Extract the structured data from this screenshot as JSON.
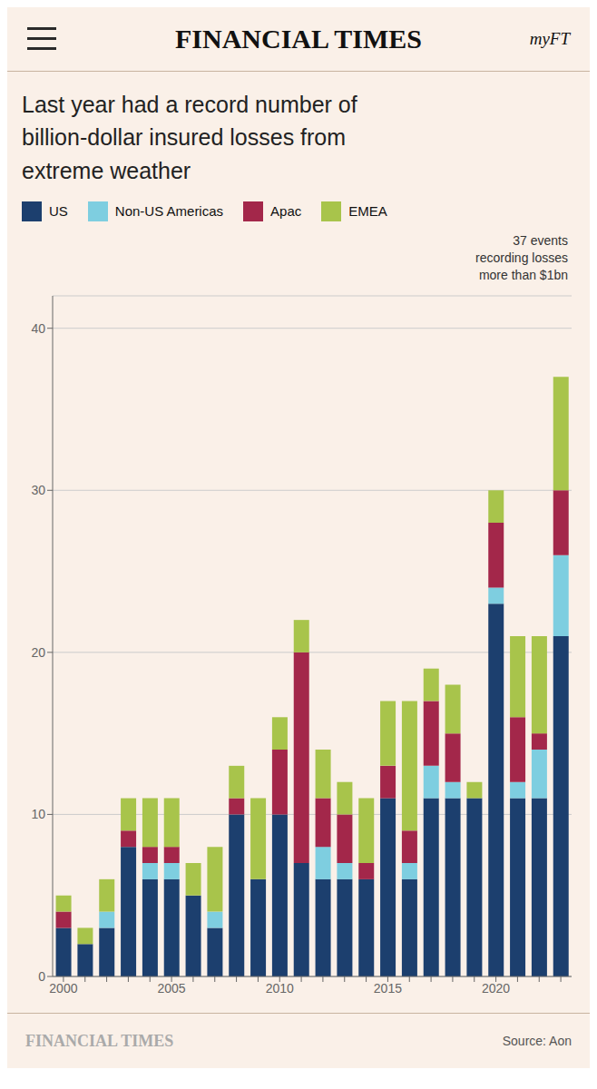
{
  "chart_data": {
    "type": "bar",
    "stacked": true,
    "title": "Last year had a record number of\nbillion-dollar insured losses from\nextreme weather",
    "header": "FINANCIAL TIMES",
    "header_right": "myFT",
    "annotation": "37 events\nrecording losses\nmore than $1bn",
    "footer": "FINANCIAL TIMES",
    "source": "Source: Aon",
    "categories": [
      "2000",
      null,
      null,
      null,
      null,
      "2005",
      null,
      null,
      null,
      null,
      "2010",
      null,
      null,
      null,
      null,
      "2015",
      null,
      null,
      null,
      null,
      "2020",
      null,
      null,
      null
    ],
    "series": [
      {
        "name": "US",
        "color": "#1c3f6e",
        "values": [
          3,
          2,
          3,
          8,
          6,
          6,
          5,
          3,
          10,
          6,
          10,
          7,
          6,
          6,
          6,
          11,
          6,
          11,
          11,
          11,
          23,
          11,
          11,
          21
        ]
      },
      {
        "name": "Non-US Americas",
        "color": "#7ecee0",
        "values": [
          0,
          0,
          1,
          0,
          1,
          1,
          0,
          1,
          0,
          0,
          0,
          0,
          2,
          1,
          0,
          0,
          1,
          2,
          1,
          0,
          1,
          1,
          3,
          5
        ]
      },
      {
        "name": "Apac",
        "color": "#a3274a",
        "values": [
          1,
          0,
          0,
          1,
          1,
          1,
          0,
          0,
          1,
          0,
          4,
          13,
          3,
          3,
          1,
          2,
          2,
          4,
          3,
          0,
          4,
          4,
          1,
          4
        ]
      },
      {
        "name": "EMEA",
        "color": "#a8c44b",
        "values": [
          1,
          1,
          2,
          2,
          3,
          3,
          2,
          4,
          2,
          5,
          2,
          2,
          3,
          2,
          4,
          4,
          8,
          2,
          3,
          1,
          2,
          5,
          6,
          7
        ]
      }
    ],
    "ylim": [
      0,
      42
    ],
    "yticks": [
      0,
      10,
      20,
      30,
      40
    ],
    "grid": true,
    "legend": "top"
  }
}
